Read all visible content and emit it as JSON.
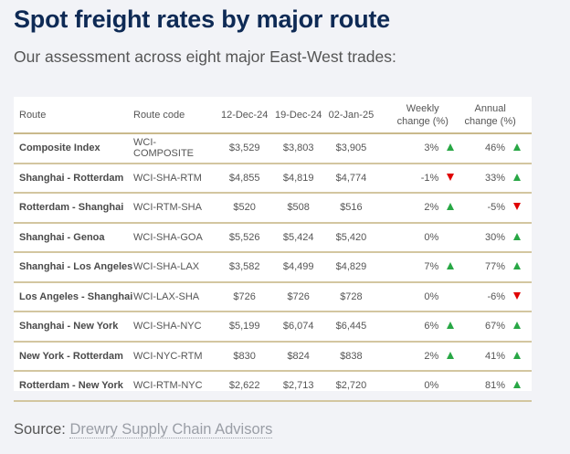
{
  "header": {
    "title": "Spot freight rates by major route",
    "subtitle": "Our assessment across eight major East-West trades:"
  },
  "colors": {
    "title": "#0e2a55",
    "divider": "#c9b98c",
    "up": "#28a745",
    "down": "#e00000",
    "background": "#f2f3f7"
  },
  "table": {
    "columns": {
      "route": "Route",
      "code": "Route code",
      "d1": "12-Dec-24",
      "d2": "19-Dec-24",
      "d3": "02-Jan-25",
      "weekly_line1": "Weekly",
      "weekly_line2": "change (%)",
      "annual_line1": "Annual",
      "annual_line2": "change (%)"
    },
    "rows": [
      {
        "route": "Composite Index",
        "code": "WCI-COMPOSITE",
        "d1": "$3,529",
        "d2": "$3,803",
        "d3": "$3,905",
        "weekly": "3%",
        "weekly_dir": "up",
        "annual": "46%",
        "annual_dir": "up"
      },
      {
        "route": "Shanghai - Rotterdam",
        "code": "WCI-SHA-RTM",
        "d1": "$4,855",
        "d2": "$4,819",
        "d3": "$4,774",
        "weekly": "-1%",
        "weekly_dir": "down",
        "annual": "33%",
        "annual_dir": "up"
      },
      {
        "route": "Rotterdam - Shanghai",
        "code": "WCI-RTM-SHA",
        "d1": "$520",
        "d2": "$508",
        "d3": "$516",
        "weekly": "2%",
        "weekly_dir": "up",
        "annual": "-5%",
        "annual_dir": "down"
      },
      {
        "route": "Shanghai - Genoa",
        "code": "WCI-SHA-GOA",
        "d1": "$5,526",
        "d2": "$5,424",
        "d3": "$5,420",
        "weekly": "0%",
        "weekly_dir": "none",
        "annual": "30%",
        "annual_dir": "up"
      },
      {
        "route": "Shanghai - Los Angeles",
        "code": "WCI-SHA-LAX",
        "d1": "$3,582",
        "d2": "$4,499",
        "d3": "$4,829",
        "weekly": "7%",
        "weekly_dir": "up",
        "annual": "77%",
        "annual_dir": "up"
      },
      {
        "route": "Los Angeles - Shanghai",
        "code": "WCI-LAX-SHA",
        "d1": "$726",
        "d2": "$726",
        "d3": "$728",
        "weekly": "0%",
        "weekly_dir": "none",
        "annual": "-6%",
        "annual_dir": "down"
      },
      {
        "route": "Shanghai - New York",
        "code": "WCI-SHA-NYC",
        "d1": "$5,199",
        "d2": "$6,074",
        "d3": "$6,445",
        "weekly": "6%",
        "weekly_dir": "up",
        "annual": "67%",
        "annual_dir": "up"
      },
      {
        "route": "New York - Rotterdam",
        "code": "WCI-NYC-RTM",
        "d1": "$830",
        "d2": "$824",
        "d3": "$838",
        "weekly": "2%",
        "weekly_dir": "up",
        "annual": "41%",
        "annual_dir": "up"
      },
      {
        "route": "Rotterdam - New York",
        "code": "WCI-RTM-NYC",
        "d1": "$2,622",
        "d2": "$2,713",
        "d3": "$2,720",
        "weekly": "0%",
        "weekly_dir": "none",
        "annual": "81%",
        "annual_dir": "up"
      }
    ]
  },
  "footer": {
    "source_label": "Source:",
    "source_link": "Drewry Supply Chain Advisors"
  }
}
